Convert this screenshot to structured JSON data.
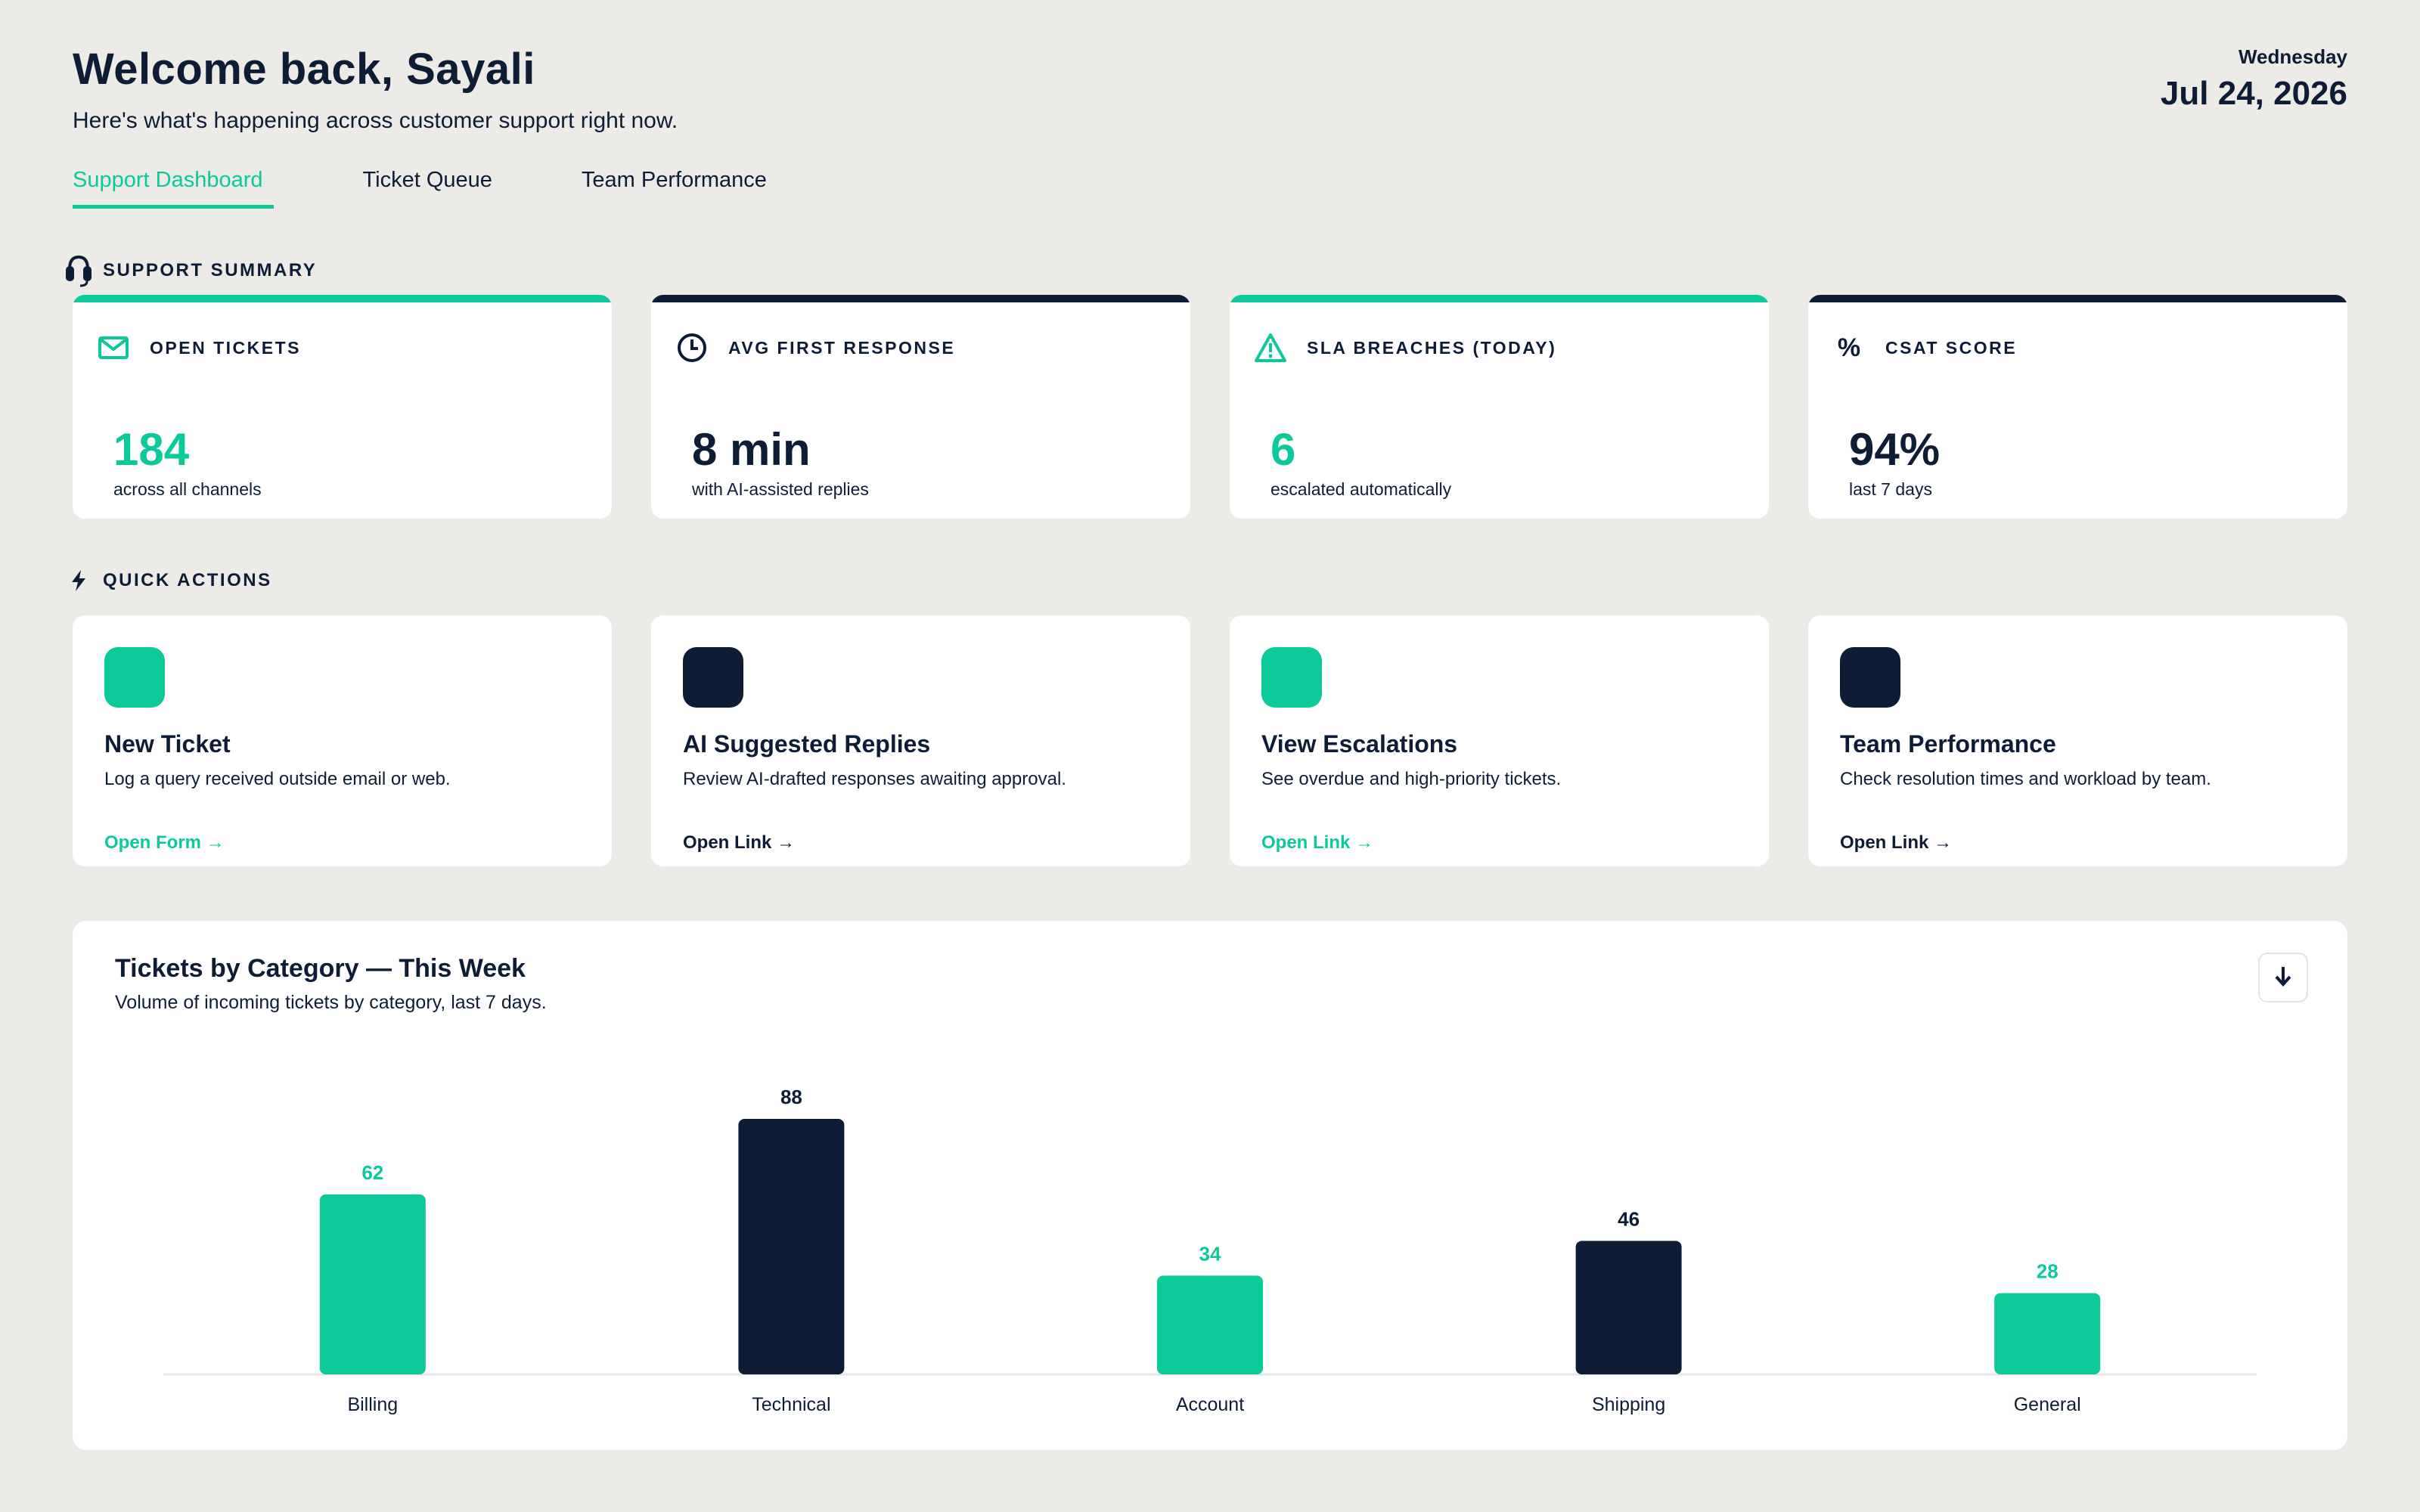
{
  "header": {
    "welcome": "Welcome back, Sayali",
    "subtitle": "Here's what's happening across customer support right now."
  },
  "date": {
    "day": "Wednesday",
    "full": "Jul 24, 2026"
  },
  "tabs": [
    {
      "label": "Support Dashboard",
      "active": true
    },
    {
      "label": "Ticket Queue",
      "active": false
    },
    {
      "label": "Team Performance",
      "active": false
    }
  ],
  "summary": {
    "label": "SUPPORT SUMMARY",
    "icon": "headset-icon",
    "cards": [
      {
        "title": "OPEN TICKETS",
        "icon": "envelope-icon",
        "value": "184",
        "sub": "across all channels",
        "accent": "#0cc99a"
      },
      {
        "title": "AVG FIRST RESPONSE",
        "icon": "clock-icon",
        "value": "8 min",
        "sub": "with AI-assisted replies",
        "accent": "#0e1d35"
      },
      {
        "title": "SLA BREACHES (TODAY)",
        "icon": "warning-icon",
        "value": "6",
        "sub": "escalated automatically",
        "accent": "#0cc99a"
      },
      {
        "title": "CSAT SCORE",
        "icon": "percent-icon",
        "value": "94%",
        "sub": "last 7 days",
        "accent": "#0e1d35"
      }
    ]
  },
  "quick_actions": {
    "label": "QUICK ACTIONS",
    "icon": "bolt-icon",
    "cards": [
      {
        "title": "New Ticket",
        "desc": "Log a query received outside email or web.",
        "link": "Open Form →",
        "accent": "#0cc99a"
      },
      {
        "title": "AI Suggested Replies",
        "desc": "Review AI-drafted responses awaiting approval.",
        "link": "Open Link →",
        "accent": "#0e1d35"
      },
      {
        "title": "View Escalations",
        "desc": "See overdue and high-priority tickets.",
        "link": "Open Link →",
        "accent": "#0cc99a"
      },
      {
        "title": "Team Performance",
        "desc": "Check resolution times and workload by team.",
        "link": "Open Link →",
        "accent": "#0e1d35"
      }
    ]
  },
  "chart_panel": {
    "title": "Tickets by Category — This Week",
    "subtitle": "Volume of incoming tickets by category, last 7 days.",
    "download_icon": "download-arrow-icon"
  },
  "chart_data": {
    "type": "bar",
    "title": "Tickets by Category — This Week",
    "categories": [
      "Billing",
      "Technical",
      "Account",
      "Shipping",
      "General"
    ],
    "values": [
      62,
      88,
      34,
      46,
      28
    ],
    "colors": [
      "#0cc99a",
      "#0e1d35",
      "#0cc99a",
      "#0e1d35",
      "#0cc99a"
    ],
    "ylim": [
      0,
      88
    ],
    "grid": false,
    "legend": "none"
  },
  "colors": {
    "accent": "#0cc99a",
    "dark": "#0e1d35",
    "background": "#edebe7"
  }
}
